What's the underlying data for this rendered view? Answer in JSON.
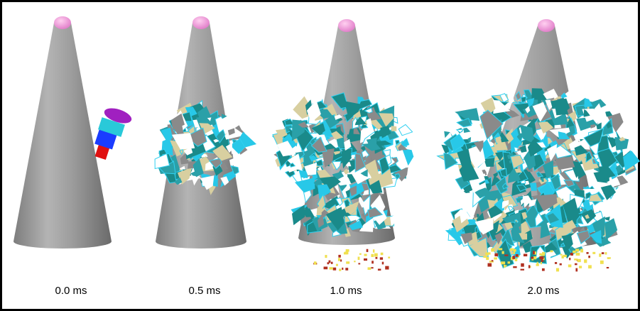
{
  "frames": [
    {
      "label": "0.0 ms"
    },
    {
      "label": "0.5 ms"
    },
    {
      "label": "1.0 ms"
    },
    {
      "label": "2.0 ms"
    }
  ]
}
